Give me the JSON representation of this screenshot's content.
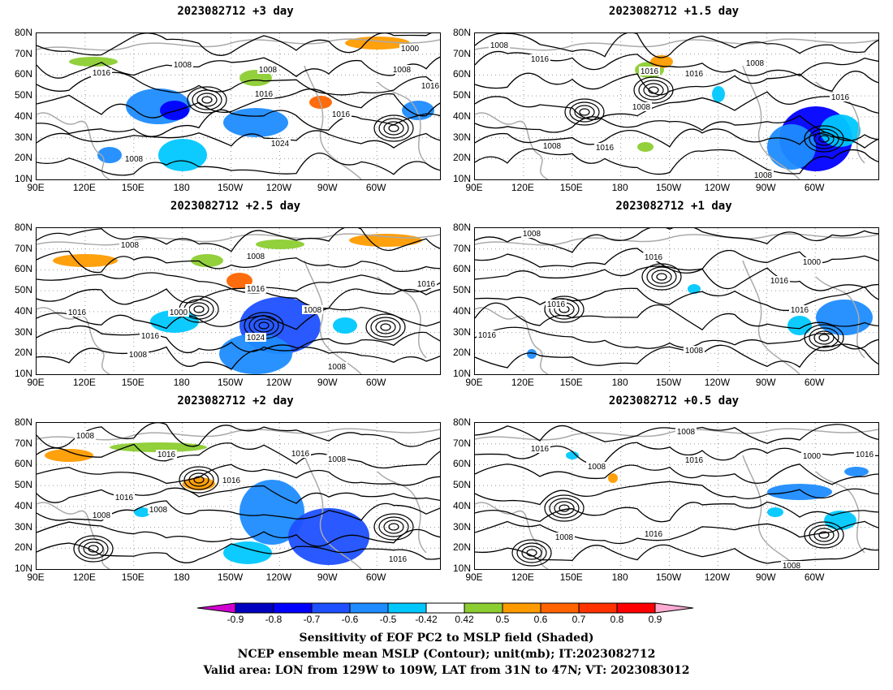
{
  "panels": [
    {
      "title": "2023082712  +3 day"
    },
    {
      "title": "2023082712  +1.5 day"
    },
    {
      "title": "2023082712  +2.5 day"
    },
    {
      "title": "2023082712  +1 day"
    },
    {
      "title": "2023082712  +2 day"
    },
    {
      "title": "2023082712  +0.5 day"
    }
  ],
  "axes": {
    "lat_labels": [
      "80N",
      "70N",
      "60N",
      "50N",
      "40N",
      "30N",
      "20N",
      "10N"
    ],
    "lon_labels": [
      "90E",
      "120E",
      "150E",
      "180",
      "150W",
      "120W",
      "90W",
      "60W"
    ]
  },
  "contour_labels": {
    "p0": [
      "1016",
      "1008",
      "1008",
      "1016",
      "1008",
      "1000",
      "1016",
      "1024",
      "1008",
      "1016"
    ],
    "p1": [
      "1008",
      "1016",
      "1016",
      "1008",
      "1016",
      "1008",
      "1016",
      "1008",
      "1016",
      "1008"
    ],
    "p2": [
      "1008",
      "1008",
      "1016",
      "1016",
      "1000",
      "1024",
      "1008",
      "1016",
      "1008",
      "1008",
      "1016"
    ],
    "p3": [
      "1008",
      "1016",
      "1016",
      "1000",
      "1016",
      "1016",
      "1008",
      "1016"
    ],
    "p4": [
      "1008",
      "1016",
      "1016",
      "1008",
      "1016",
      "1008",
      "1008",
      "1016",
      "1016"
    ],
    "p5": [
      "1008",
      "1016",
      "1008",
      "1016",
      "1016",
      "1000",
      "1016",
      "1008",
      "1016",
      "1008"
    ]
  },
  "legend": {
    "ticks": [
      "-0.9",
      "-0.8",
      "-0.7",
      "-0.6",
      "-0.5",
      "-0.42",
      "0.42",
      "0.5",
      "0.6",
      "0.7",
      "0.8",
      "0.9"
    ],
    "colors": [
      "#0000c0",
      "#0000ff",
      "#1e50ff",
      "#1e8cff",
      "#00c8ff",
      "#ffffff",
      "#8ccd32",
      "#ff9b00",
      "#ff6400",
      "#ff3200",
      "#ff0000"
    ],
    "left_tip": "#d000d0",
    "right_tip": "#ffaad2"
  },
  "caption": {
    "line1": "Sensitivity of EOF PC2 to MSLP field (Shaded)",
    "line2": "NCEP ensemble mean MSLP (Contour); unit(mb); IT:2023082712",
    "line3": "Valid area: LON from 129W to 109W, LAT from 31N to 47N; VT: 2023083012"
  }
}
